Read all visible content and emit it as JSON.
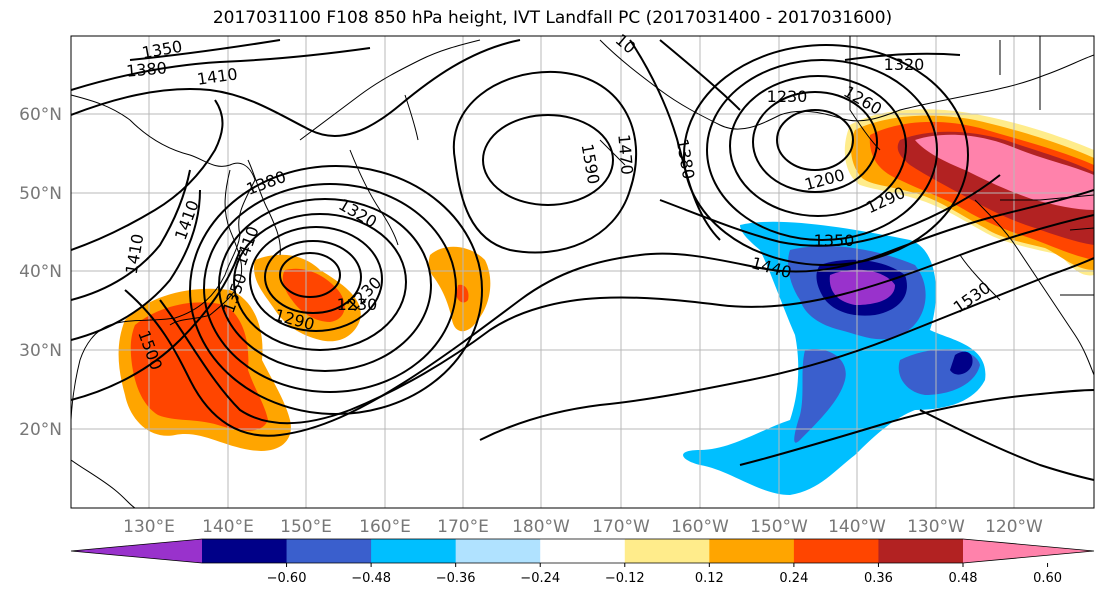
{
  "title": "2017031100 F108 850 hPa height, IVT Landfall PC (2017031400 - 2017031600)",
  "lat_labels": [
    "60°N",
    "50°N",
    "40°N",
    "30°N",
    "20°N"
  ],
  "lon_labels": [
    "130°E",
    "140°E",
    "150°E",
    "160°E",
    "170°E",
    "180°W",
    "170°W",
    "160°W",
    "150°W",
    "140°W",
    "130°W",
    "120°W"
  ],
  "contour_labels": [
    "1350",
    "1380",
    "1410",
    "10",
    "1320",
    "1230",
    "1260",
    "1590",
    "1470",
    "1380",
    "1200",
    "1380",
    "1320",
    "1410",
    "1290",
    "1350",
    "1410",
    "1440",
    "1290",
    "1350",
    "1230",
    "1230",
    "1500",
    "1530",
    "1410"
  ],
  "colorbar": {
    "colors": [
      "#9932CC",
      "#000088",
      "#3A5FCD",
      "#00BFFF",
      "#B0E2FF",
      "#FFFFFF",
      "#FFEC8B",
      "#FFA500",
      "#FF4500",
      "#B22222",
      "#FF82AB"
    ],
    "ticks": [
      "−0.60",
      "−0.48",
      "−0.36",
      "−0.24",
      "−0.12",
      "0.12",
      "0.24",
      "0.36",
      "0.48",
      "0.60"
    ]
  }
}
